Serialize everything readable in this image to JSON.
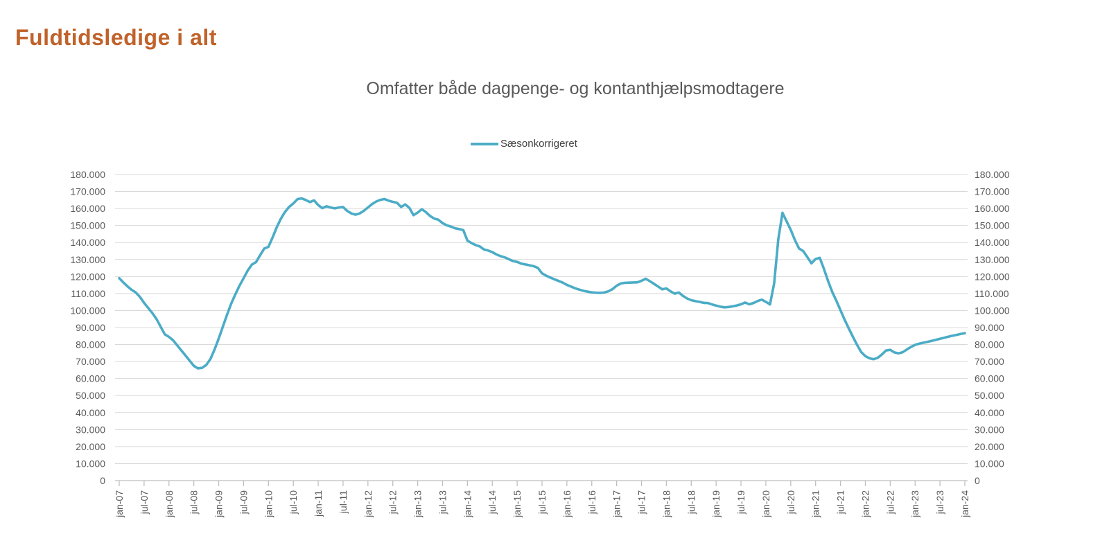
{
  "page": {
    "title": "Fuldtidsledige i alt"
  },
  "chart": {
    "subtitle": "Omfatter både dagpenge- og kontanthjælpsmodtagere",
    "legend": {
      "label": "Sæsonkorrigeret"
    },
    "colors": {
      "line": "#4BACC6",
      "title": "#C0622A",
      "subtitle_text": "#595959",
      "axis_text": "#595959",
      "gridline": "#D9D9D9",
      "axis_line": "#BFBFBF"
    }
  },
  "chart_data": {
    "type": "line",
    "title": "Omfatter både dagpenge- og kontanthjælpsmodtagere",
    "series_name": "Sæsonkorrigeret",
    "legend_position": "top",
    "grid": true,
    "x_interval": "monthly",
    "x_start": "jan-07",
    "x_end": "jan-24",
    "ylim": [
      0,
      180000
    ],
    "y_tick_step": 10000,
    "y_tick_labels": [
      "180.000",
      "170.000",
      "160.000",
      "150.000",
      "140.000",
      "130.000",
      "120.000",
      "110.000",
      "100.000",
      "90.000",
      "80.000",
      "70.000",
      "60.000",
      "50.000",
      "40.000",
      "30.000",
      "20.000",
      "10.000",
      "0"
    ],
    "x_tick_labels": [
      "jan-07",
      "jul-07",
      "jan-08",
      "jul-08",
      "jan-09",
      "jul-09",
      "jan-10",
      "jul-10",
      "jan-11",
      "jul-11",
      "jan-12",
      "jul-12",
      "jan-13",
      "jul-13",
      "jan-14",
      "jul-14",
      "jan-15",
      "jul-15",
      "jan-16",
      "jul-16",
      "jan-17",
      "jul-17",
      "jan-18",
      "jul-18",
      "jan-19",
      "jul-19",
      "jan-20",
      "jul-20",
      "jan-21",
      "jul-21",
      "jan-22",
      "jul-22",
      "jan-23",
      "jul-23",
      "jan-24"
    ],
    "x_tick_every_n_months": 6,
    "values": [
      119000,
      116500,
      114200,
      112200,
      110600,
      108000,
      104500,
      101500,
      98500,
      95000,
      90500,
      86000,
      84500,
      82500,
      79500,
      76500,
      73500,
      70500,
      67500,
      66000,
      66300,
      68000,
      71500,
      77000,
      83500,
      90500,
      97500,
      104000,
      109500,
      114500,
      119000,
      123500,
      127000,
      128500,
      132500,
      136500,
      137500,
      143000,
      149000,
      154000,
      158000,
      161000,
      163000,
      165500,
      166000,
      165000,
      163800,
      164800,
      162000,
      160200,
      161300,
      160600,
      160100,
      160600,
      160900,
      158600,
      157100,
      156400,
      157100,
      158600,
      160600,
      162600,
      164100,
      165100,
      165600,
      164600,
      163900,
      163400,
      160900,
      162400,
      160400,
      156100,
      157600,
      159600,
      157900,
      155600,
      154100,
      153400,
      151400,
      150100,
      149400,
      148400,
      147900,
      147300,
      141100,
      139700,
      138500,
      137700,
      135900,
      135300,
      134400,
      133000,
      132000,
      131300,
      130200,
      129100,
      128600,
      127600,
      127100,
      126600,
      126100,
      125100,
      121900,
      120500,
      119400,
      118400,
      117400,
      116400,
      115100,
      114100,
      113100,
      112300,
      111600,
      111100,
      110700,
      110500,
      110400,
      110600,
      111300,
      112600,
      114600,
      115900,
      116300,
      116400,
      116500,
      116600,
      117500,
      118700,
      117300,
      115700,
      114100,
      112500,
      113000,
      111300,
      109900,
      110600,
      108600,
      107100,
      106100,
      105500,
      105100,
      104500,
      104400,
      103600,
      102900,
      102300,
      101900,
      102100,
      102500,
      103000,
      103700,
      104700,
      103700,
      104400,
      105600,
      106400,
      105100,
      103600,
      116000,
      142000,
      157500,
      152500,
      147500,
      141500,
      136500,
      135000,
      131500,
      127800,
      130300,
      131000,
      124500,
      117500,
      111000,
      105800,
      100200,
      94600,
      89500,
      84600,
      79800,
      75600,
      73200,
      71900,
      71400,
      72200,
      74200,
      76500,
      76900,
      75400,
      74800,
      75500,
      77100,
      78600,
      79800,
      80500,
      81100,
      81600,
      82200,
      82800,
      83400,
      84000,
      84600,
      85200,
      85700,
      86200,
      86700
    ]
  }
}
